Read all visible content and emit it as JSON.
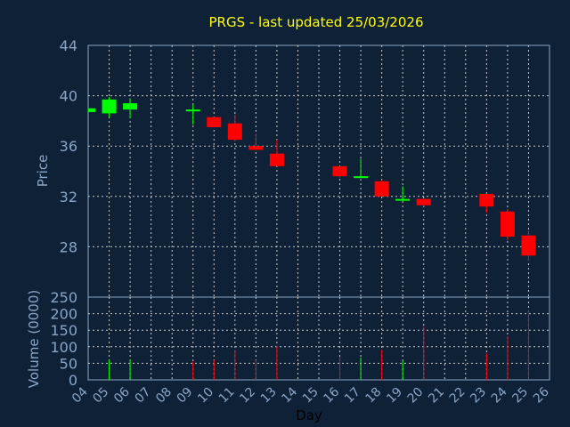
{
  "chart_data": [
    {
      "type": "candlestick",
      "title": "PRGS - last updated 25/03/2026",
      "ylabel": "Price",
      "ylim": [
        24,
        44
      ],
      "yticks": [
        28,
        32,
        36,
        40,
        44
      ],
      "grid": true,
      "colors": {
        "up": "#00ff00",
        "down": "#ff0000",
        "background": "#0f2137",
        "title": "#ffff00",
        "axis_text": "#8aa6c6",
        "grid": "#c8c8c8"
      },
      "candles": [
        {
          "x": 4,
          "open": 38.7,
          "high": 39.0,
          "low": 38.7,
          "close": 39.0
        },
        {
          "x": 5,
          "open": 38.6,
          "high": 39.9,
          "low": 38.3,
          "close": 39.7
        },
        {
          "x": 6,
          "open": 38.9,
          "high": 39.8,
          "low": 38.2,
          "close": 39.4
        },
        {
          "x": 9,
          "open": 38.9,
          "high": 39.3,
          "low": 37.7,
          "close": 38.9
        },
        {
          "x": 10,
          "open": 38.3,
          "high": 38.3,
          "low": 37.5,
          "close": 37.5
        },
        {
          "x": 11,
          "open": 37.8,
          "high": 38.5,
          "low": 36.4,
          "close": 36.5
        },
        {
          "x": 12,
          "open": 36.0,
          "high": 37.0,
          "low": 35.7,
          "close": 35.7
        },
        {
          "x": 13,
          "open": 35.4,
          "high": 36.5,
          "low": 34.4,
          "close": 34.4
        },
        {
          "x": 16,
          "open": 34.4,
          "high": 34.4,
          "low": 33.5,
          "close": 33.6
        },
        {
          "x": 17,
          "open": 33.5,
          "high": 35.0,
          "low": 33.5,
          "close": 33.6
        },
        {
          "x": 18,
          "open": 33.2,
          "high": 33.3,
          "low": 32.0,
          "close": 32.0
        },
        {
          "x": 19,
          "open": 31.7,
          "high": 32.8,
          "low": 31.6,
          "close": 31.8
        },
        {
          "x": 20,
          "open": 31.8,
          "high": 31.8,
          "low": 31.2,
          "close": 31.3
        },
        {
          "x": 23,
          "open": 32.2,
          "high": 32.2,
          "low": 30.7,
          "close": 31.2
        },
        {
          "x": 24,
          "open": 30.8,
          "high": 31.0,
          "low": 28.5,
          "close": 28.8
        },
        {
          "x": 25,
          "open": 28.9,
          "high": 29.3,
          "low": 26.9,
          "close": 27.3
        }
      ]
    },
    {
      "type": "bar",
      "ylabel": "Volume (0000)",
      "xlabel": "Day",
      "ylim": [
        0,
        250
      ],
      "yticks": [
        0,
        50,
        100,
        150,
        200,
        250
      ],
      "grid": true,
      "x_ticks": [
        "04",
        "05",
        "06",
        "07",
        "08",
        "09",
        "10",
        "11",
        "12",
        "13",
        "14",
        "15",
        "16",
        "17",
        "18",
        "19",
        "20",
        "21",
        "22",
        "23",
        "24",
        "25",
        "26"
      ],
      "bars": [
        {
          "x": 5,
          "value": 60,
          "dir": "up"
        },
        {
          "x": 6,
          "value": 62,
          "dir": "up"
        },
        {
          "x": 9,
          "value": 55,
          "dir": "down"
        },
        {
          "x": 10,
          "value": 60,
          "dir": "down"
        },
        {
          "x": 11,
          "value": 88,
          "dir": "down"
        },
        {
          "x": 12,
          "value": 60,
          "dir": "down"
        },
        {
          "x": 13,
          "value": 102,
          "dir": "down"
        },
        {
          "x": 16,
          "value": 70,
          "dir": "down"
        },
        {
          "x": 17,
          "value": 68,
          "dir": "up"
        },
        {
          "x": 18,
          "value": 90,
          "dir": "down"
        },
        {
          "x": 19,
          "value": 58,
          "dir": "up"
        },
        {
          "x": 20,
          "value": 162,
          "dir": "down"
        },
        {
          "x": 23,
          "value": 80,
          "dir": "down"
        },
        {
          "x": 24,
          "value": 132,
          "dir": "down"
        },
        {
          "x": 25,
          "value": 210,
          "dir": "down"
        }
      ]
    }
  ]
}
